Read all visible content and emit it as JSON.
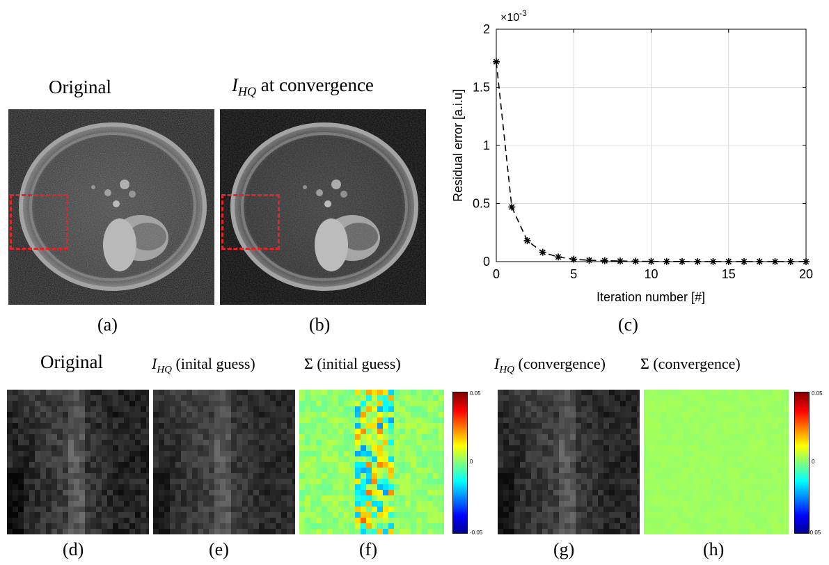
{
  "top_row": {
    "panel_a": {
      "title": "Original",
      "caption": "(a)"
    },
    "panel_b": {
      "title_var": "I",
      "title_sub": "HQ",
      "title_rest": " at convergence",
      "caption": "(b)"
    },
    "panel_c": {
      "caption": "(c)"
    }
  },
  "bottom_row": {
    "panel_d": {
      "title": "Original",
      "caption": "(d)"
    },
    "panel_e": {
      "title_var": "I",
      "title_sub": "HQ",
      "title_rest": " (inital guess)",
      "caption": "(e)"
    },
    "panel_f": {
      "title_sym": "Σ",
      "title_rest": " (initial guess)",
      "caption": "(f)"
    },
    "panel_g": {
      "title_var": "I",
      "title_sub": "HQ",
      "title_rest": " (convergence)",
      "caption": "(g)"
    },
    "panel_h": {
      "title_sym": "Σ",
      "title_rest": " (convergence)",
      "caption": "(h)"
    }
  },
  "colorbar": {
    "max_label": "0.05",
    "mid_label": "0",
    "min_label": "-0.05"
  },
  "chart_data": {
    "type": "line",
    "xlabel": "Iteration number [#]",
    "ylabel": "Residual error [a.i.u]",
    "y_scale_label": "×10",
    "y_scale_exp": "-3",
    "xlim": [
      0,
      20
    ],
    "ylim": [
      0,
      2
    ],
    "xticks": [
      "0",
      "5",
      "10",
      "15",
      "20"
    ],
    "yticks": [
      "0",
      "0.5",
      "1",
      "1.5",
      "2"
    ],
    "grid": true,
    "line_style": "dashed",
    "marker": "asterisk",
    "color": "#000000",
    "x": [
      0,
      1,
      2,
      3,
      4,
      5,
      6,
      7,
      8,
      9,
      10,
      11,
      12,
      13,
      14,
      15,
      16,
      17,
      18,
      19,
      20
    ],
    "y": [
      1.72,
      0.47,
      0.18,
      0.08,
      0.04,
      0.02,
      0.012,
      0.008,
      0.005,
      0.003,
      0.002,
      0.001,
      0.001,
      0.0005,
      0.0005,
      0.0003,
      0.0002,
      0.0002,
      0.0001,
      0.0001,
      0.0001
    ]
  }
}
